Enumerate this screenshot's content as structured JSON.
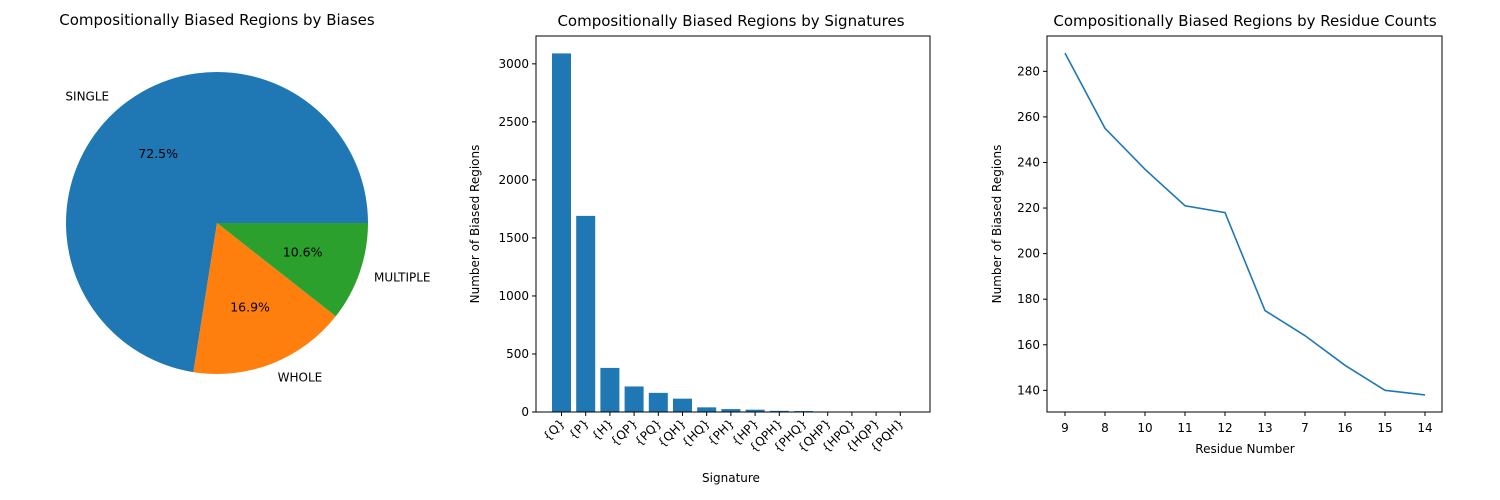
{
  "colors": {
    "blue": "#1f77b4",
    "orange": "#ff7f0e",
    "green": "#2ca02c"
  },
  "chart_data": [
    {
      "type": "pie",
      "title": "Compositionally Biased Regions by Biases",
      "labels": [
        "SINGLE",
        "WHOLE",
        "MULTIPLE"
      ],
      "values": [
        72.5,
        16.9,
        10.6
      ],
      "percent_labels": [
        "72.5%",
        "16.9%",
        "10.6%"
      ],
      "colors": [
        "#1f77b4",
        "#ff7f0e",
        "#2ca02c"
      ]
    },
    {
      "type": "bar",
      "title": "Compositionally Biased Regions by Signatures",
      "xlabel": "Signature",
      "ylabel": "Number of Biased Regions",
      "categories": [
        "{Q}",
        "{P}",
        "{H}",
        "{QP}",
        "{PQ}",
        "{QH}",
        "{HQ}",
        "{PH}",
        "{HP}",
        "{QPH}",
        "{PHQ}",
        "{QHP}",
        "{HPQ}",
        "{HQP}",
        "{PQH}"
      ],
      "values": [
        3090,
        1690,
        380,
        220,
        165,
        115,
        40,
        25,
        20,
        10,
        8,
        3,
        2,
        2,
        1
      ],
      "ylim": [
        0,
        3240
      ],
      "yticks": [
        0,
        500,
        1000,
        1500,
        2000,
        2500,
        3000
      ],
      "color": "#1f77b4"
    },
    {
      "type": "line",
      "title": "Compositionally Biased Regions by Residue Counts",
      "xlabel": "Residue Number",
      "ylabel": "Number of Biased Regions",
      "categories": [
        "9",
        "8",
        "10",
        "11",
        "12",
        "13",
        "7",
        "16",
        "15",
        "14"
      ],
      "values": [
        288,
        255,
        237,
        221,
        218,
        175,
        164,
        151,
        140,
        138
      ],
      "ylim": [
        130.5,
        295.5
      ],
      "yticks": [
        140,
        160,
        180,
        200,
        220,
        240,
        260,
        280
      ],
      "color": "#1f77b4"
    }
  ]
}
